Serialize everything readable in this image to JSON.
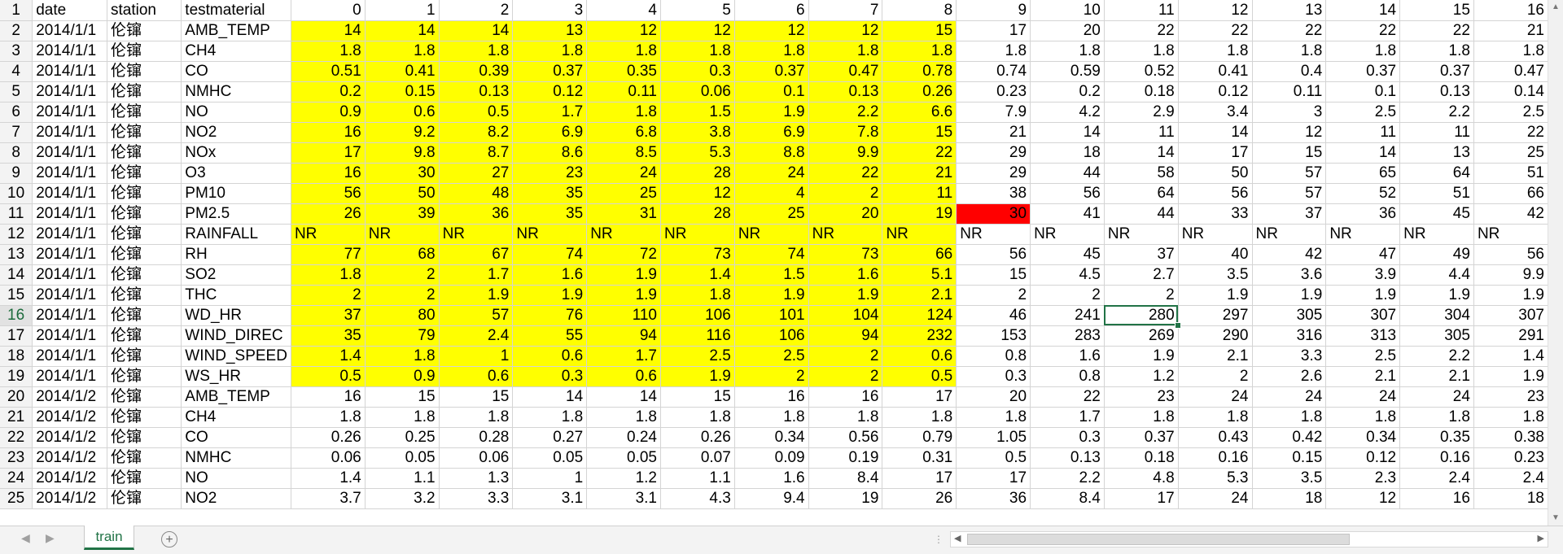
{
  "columns": [
    "date",
    "station",
    "testmaterial",
    "0",
    "1",
    "2",
    "3",
    "4",
    "5",
    "6",
    "7",
    "8",
    "9",
    "10",
    "11",
    "12",
    "13",
    "14",
    "15",
    "16"
  ],
  "rows": [
    [
      "2014/1/1",
      "伦镩",
      "AMB_TEMP",
      "14",
      "14",
      "14",
      "13",
      "12",
      "12",
      "12",
      "12",
      "15",
      "17",
      "20",
      "22",
      "22",
      "22",
      "22",
      "22",
      "21"
    ],
    [
      "2014/1/1",
      "伦镩",
      "CH4",
      "1.8",
      "1.8",
      "1.8",
      "1.8",
      "1.8",
      "1.8",
      "1.8",
      "1.8",
      "1.8",
      "1.8",
      "1.8",
      "1.8",
      "1.8",
      "1.8",
      "1.8",
      "1.8",
      "1.8"
    ],
    [
      "2014/1/1",
      "伦镩",
      "CO",
      "0.51",
      "0.41",
      "0.39",
      "0.37",
      "0.35",
      "0.3",
      "0.37",
      "0.47",
      "0.78",
      "0.74",
      "0.59",
      "0.52",
      "0.41",
      "0.4",
      "0.37",
      "0.37",
      "0.47"
    ],
    [
      "2014/1/1",
      "伦镩",
      "NMHC",
      "0.2",
      "0.15",
      "0.13",
      "0.12",
      "0.11",
      "0.06",
      "0.1",
      "0.13",
      "0.26",
      "0.23",
      "0.2",
      "0.18",
      "0.12",
      "0.11",
      "0.1",
      "0.13",
      "0.14"
    ],
    [
      "2014/1/1",
      "伦镩",
      "NO",
      "0.9",
      "0.6",
      "0.5",
      "1.7",
      "1.8",
      "1.5",
      "1.9",
      "2.2",
      "6.6",
      "7.9",
      "4.2",
      "2.9",
      "3.4",
      "3",
      "2.5",
      "2.2",
      "2.5"
    ],
    [
      "2014/1/1",
      "伦镩",
      "NO2",
      "16",
      "9.2",
      "8.2",
      "6.9",
      "6.8",
      "3.8",
      "6.9",
      "7.8",
      "15",
      "21",
      "14",
      "11",
      "14",
      "12",
      "11",
      "11",
      "22"
    ],
    [
      "2014/1/1",
      "伦镩",
      "NOx",
      "17",
      "9.8",
      "8.7",
      "8.6",
      "8.5",
      "5.3",
      "8.8",
      "9.9",
      "22",
      "29",
      "18",
      "14",
      "17",
      "15",
      "14",
      "13",
      "25"
    ],
    [
      "2014/1/1",
      "伦镩",
      "O3",
      "16",
      "30",
      "27",
      "23",
      "24",
      "28",
      "24",
      "22",
      "21",
      "29",
      "44",
      "58",
      "50",
      "57",
      "65",
      "64",
      "51"
    ],
    [
      "2014/1/1",
      "伦镩",
      "PM10",
      "56",
      "50",
      "48",
      "35",
      "25",
      "12",
      "4",
      "2",
      "11",
      "38",
      "56",
      "64",
      "56",
      "57",
      "52",
      "51",
      "66"
    ],
    [
      "2014/1/1",
      "伦镩",
      "PM2.5",
      "26",
      "39",
      "36",
      "35",
      "31",
      "28",
      "25",
      "20",
      "19",
      "30",
      "41",
      "44",
      "33",
      "37",
      "36",
      "45",
      "42"
    ],
    [
      "2014/1/1",
      "伦镩",
      "RAINFALL",
      "NR",
      "NR",
      "NR",
      "NR",
      "NR",
      "NR",
      "NR",
      "NR",
      "NR",
      "NR",
      "NR",
      "NR",
      "NR",
      "NR",
      "NR",
      "NR",
      "NR"
    ],
    [
      "2014/1/1",
      "伦镩",
      "RH",
      "77",
      "68",
      "67",
      "74",
      "72",
      "73",
      "74",
      "73",
      "66",
      "56",
      "45",
      "37",
      "40",
      "42",
      "47",
      "49",
      "56"
    ],
    [
      "2014/1/1",
      "伦镩",
      "SO2",
      "1.8",
      "2",
      "1.7",
      "1.6",
      "1.9",
      "1.4",
      "1.5",
      "1.6",
      "5.1",
      "15",
      "4.5",
      "2.7",
      "3.5",
      "3.6",
      "3.9",
      "4.4",
      "9.9"
    ],
    [
      "2014/1/1",
      "伦镩",
      "THC",
      "2",
      "2",
      "1.9",
      "1.9",
      "1.9",
      "1.8",
      "1.9",
      "1.9",
      "2.1",
      "2",
      "2",
      "2",
      "1.9",
      "1.9",
      "1.9",
      "1.9",
      "1.9"
    ],
    [
      "2014/1/1",
      "伦镩",
      "WD_HR",
      "37",
      "80",
      "57",
      "76",
      "110",
      "106",
      "101",
      "104",
      "124",
      "46",
      "241",
      "280",
      "297",
      "305",
      "307",
      "304",
      "307"
    ],
    [
      "2014/1/1",
      "伦镩",
      "WIND_DIREC",
      "35",
      "79",
      "2.4",
      "55",
      "94",
      "116",
      "106",
      "94",
      "232",
      "153",
      "283",
      "269",
      "290",
      "316",
      "313",
      "305",
      "291"
    ],
    [
      "2014/1/1",
      "伦镩",
      "WIND_SPEED",
      "1.4",
      "1.8",
      "1",
      "0.6",
      "1.7",
      "2.5",
      "2.5",
      "2",
      "0.6",
      "0.8",
      "1.6",
      "1.9",
      "2.1",
      "3.3",
      "2.5",
      "2.2",
      "1.4"
    ],
    [
      "2014/1/1",
      "伦镩",
      "WS_HR",
      "0.5",
      "0.9",
      "0.6",
      "0.3",
      "0.6",
      "1.9",
      "2",
      "2",
      "0.5",
      "0.3",
      "0.8",
      "1.2",
      "2",
      "2.6",
      "2.1",
      "2.1",
      "1.9"
    ],
    [
      "2014/1/2",
      "伦镩",
      "AMB_TEMP",
      "16",
      "15",
      "15",
      "14",
      "14",
      "15",
      "16",
      "16",
      "17",
      "20",
      "22",
      "23",
      "24",
      "24",
      "24",
      "24",
      "23"
    ],
    [
      "2014/1/2",
      "伦镩",
      "CH4",
      "1.8",
      "1.8",
      "1.8",
      "1.8",
      "1.8",
      "1.8",
      "1.8",
      "1.8",
      "1.8",
      "1.8",
      "1.7",
      "1.8",
      "1.8",
      "1.8",
      "1.8",
      "1.8",
      "1.8"
    ],
    [
      "2014/1/2",
      "伦镩",
      "CO",
      "0.26",
      "0.25",
      "0.28",
      "0.27",
      "0.24",
      "0.26",
      "0.34",
      "0.56",
      "0.79",
      "1.05",
      "0.3",
      "0.37",
      "0.43",
      "0.42",
      "0.34",
      "0.35",
      "0.38"
    ],
    [
      "2014/1/2",
      "伦镩",
      "NMHC",
      "0.06",
      "0.05",
      "0.06",
      "0.05",
      "0.05",
      "0.07",
      "0.09",
      "0.19",
      "0.31",
      "0.5",
      "0.13",
      "0.18",
      "0.16",
      "0.15",
      "0.12",
      "0.16",
      "0.23"
    ],
    [
      "2014/1/2",
      "伦镩",
      "NO",
      "1.4",
      "1.1",
      "1.3",
      "1",
      "1.2",
      "1.1",
      "1.6",
      "8.4",
      "17",
      "17",
      "2.2",
      "4.8",
      "5.3",
      "3.5",
      "2.3",
      "2.4",
      "2.4"
    ],
    [
      "2014/1/2",
      "伦镩",
      "NO2",
      "3.7",
      "3.2",
      "3.3",
      "3.1",
      "3.1",
      "4.3",
      "9.4",
      "19",
      "26",
      "36",
      "8.4",
      "17",
      "24",
      "18",
      "12",
      "16",
      "18"
    ]
  ],
  "active_cell": {
    "row": 16,
    "col": "11"
  },
  "highlight_color": "#ffff00",
  "flag_color": "#ff0000",
  "sheet_tabs": [
    {
      "label": "train",
      "active": true
    }
  ],
  "icons": {
    "add_sheet": "plus-circle-icon",
    "scroll_left": "triangle-left-icon",
    "scroll_right": "triangle-right-icon"
  }
}
